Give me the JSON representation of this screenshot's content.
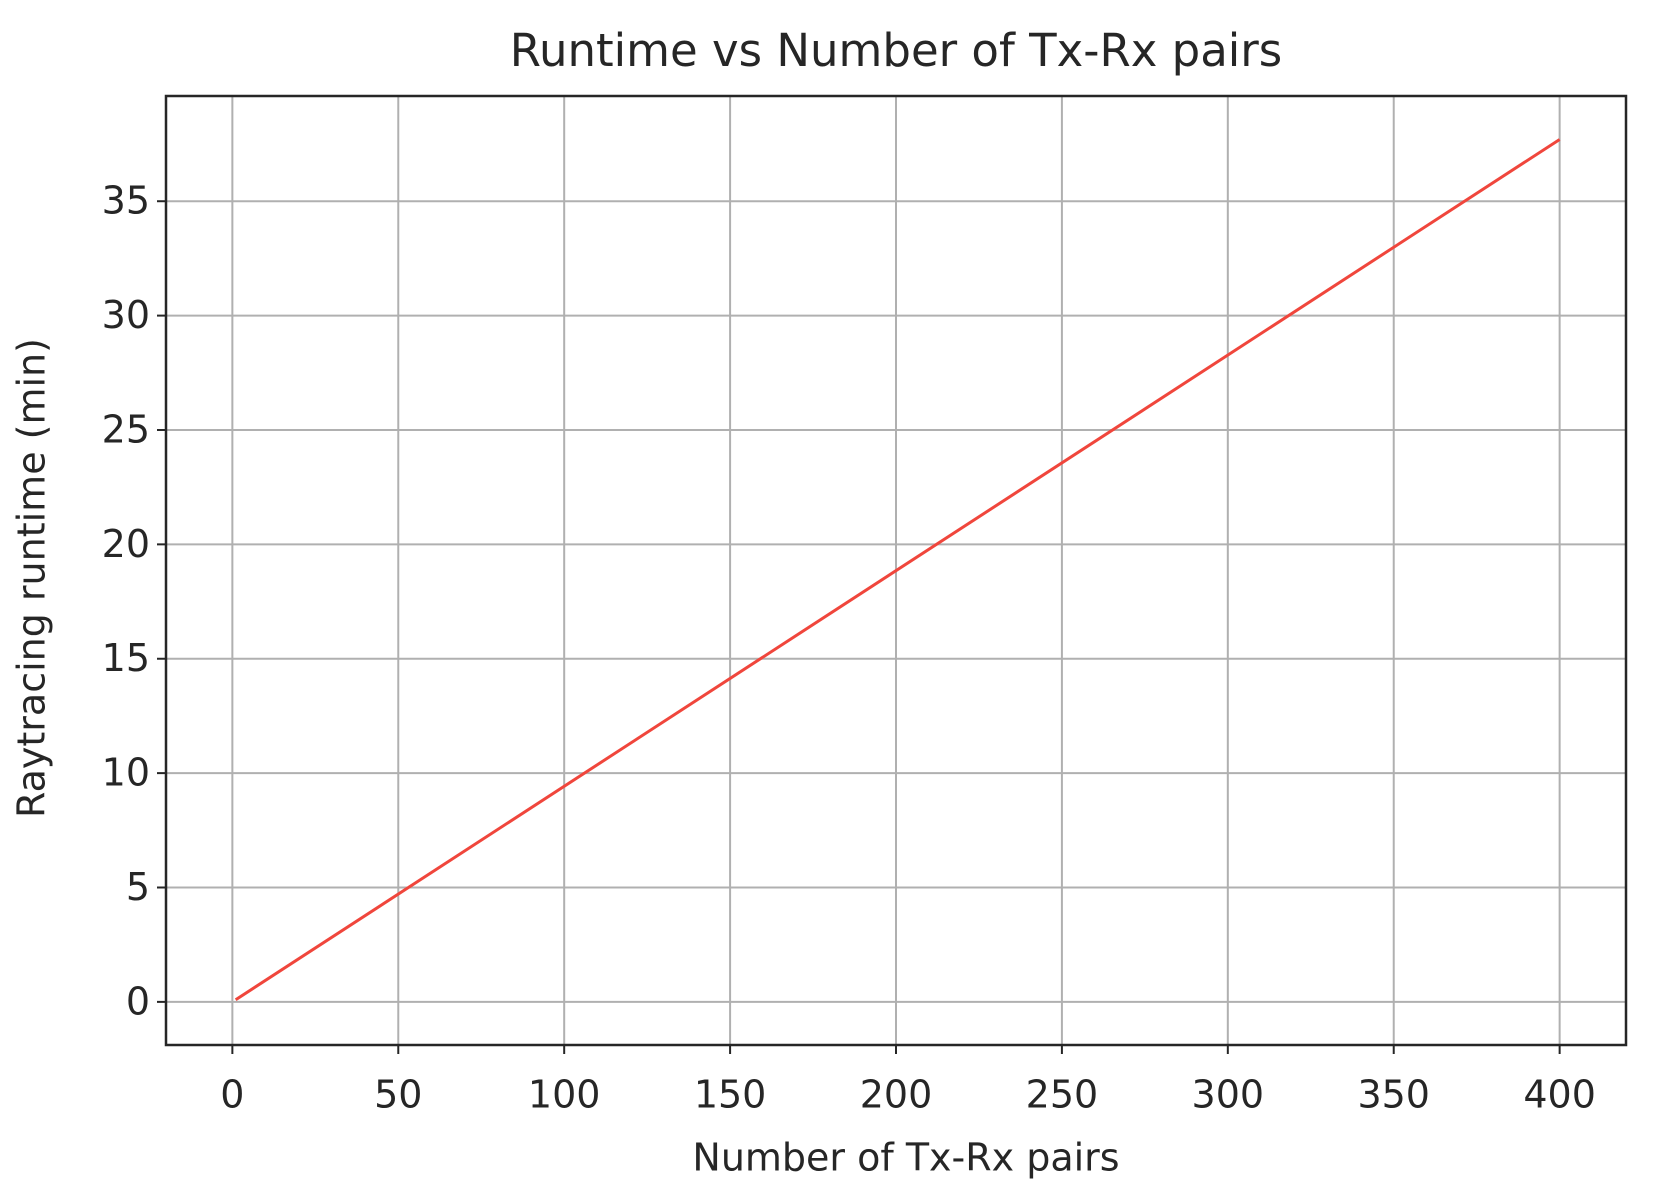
{
  "chart_data": {
    "type": "line",
    "title": "Runtime vs Number of Tx-Rx pairs",
    "x_label": "Number of Tx-Rx pairs",
    "y_label": "Raytracing runtime (min)",
    "x": [
      1,
      400
    ],
    "series": [
      {
        "name": "runtime",
        "color": "#f0463c",
        "values": [
          0.094,
          37.7
        ]
      }
    ],
    "xlim": [
      -20,
      420
    ],
    "ylim": [
      -1.885,
      39.6
    ],
    "xticks": [
      0,
      50,
      100,
      150,
      200,
      250,
      300,
      350,
      400
    ],
    "yticks": [
      0,
      5,
      10,
      15,
      20,
      25,
      30,
      35
    ],
    "grid": true,
    "legend": false
  }
}
